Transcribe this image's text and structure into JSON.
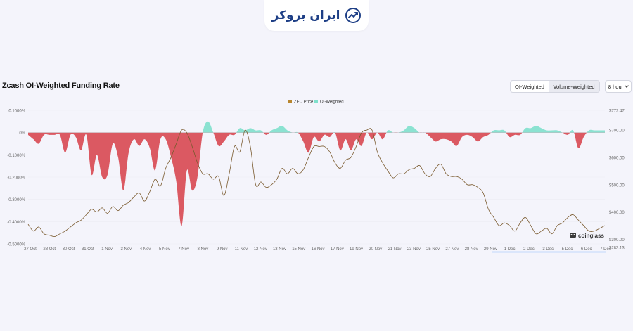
{
  "brand": {
    "name": "ایران بروکر",
    "mark_icon": "trend-up-chart-icon"
  },
  "header": {
    "title": "Zcash OI-Weighted Funding Rate",
    "toggle": {
      "options": [
        "OI-Weighted",
        "Volume-Weighted"
      ],
      "selected": "Volume-Weighted"
    },
    "interval": "8 hour"
  },
  "watermark": "coinglass",
  "chart_data": {
    "type": "area",
    "legend": {
      "placement": "top-center",
      "entries": [
        {
          "name": "ZEC Price",
          "color": "#b8862f"
        },
        {
          "name": "OI-Weighted",
          "color": "#7fe0cc"
        }
      ]
    },
    "colors": {
      "positive": "#7fe0cc",
      "negative": "#d9505a",
      "price": "#7a5a2e"
    },
    "x_tick_labels": [
      "27 Oct",
      "28 Oct",
      "30 Oct",
      "31 Oct",
      "1 Nov",
      "3 Nov",
      "4 Nov",
      "5 Nov",
      "7 Nov",
      "8 Nov",
      "9 Nov",
      "11 Nov",
      "12 Nov",
      "13 Nov",
      "15 Nov",
      "16 Nov",
      "17 Nov",
      "19 Nov",
      "20 Nov",
      "21 Nov",
      "23 Nov",
      "25 Nov",
      "27 Nov",
      "28 Nov",
      "29 Nov",
      "1 Dec",
      "2 Dec",
      "3 Dec",
      "5 Dec",
      "6 Dec",
      "7 Dec"
    ],
    "left_axis": {
      "ylabel": "",
      "ticks": [
        "0.1000%",
        "0%",
        "-0.1000%",
        "-0.2000%",
        "-0.3000%",
        "-0.4000%",
        "-0.5000%"
      ],
      "range": [
        -0.5,
        0.1
      ]
    },
    "right_axis": {
      "ylabel": "",
      "ticks": [
        "$772.47",
        "$700.00",
        "$600.00",
        "$500.00",
        "$400.00",
        "$300.00",
        "$283.13"
      ],
      "range": [
        283.13,
        772.47
      ]
    },
    "series": [
      {
        "name": "OI-Weighted",
        "unit": "%",
        "values": [
          -0.01,
          -0.03,
          -0.05,
          -0.01,
          -0.01,
          -0.01,
          -0.01,
          -0.09,
          -0.01,
          -0.02,
          -0.08,
          -0.01,
          -0.19,
          -0.1,
          -0.2,
          -0.19,
          -0.05,
          -0.11,
          -0.26,
          -0.09,
          -0.03,
          -0.06,
          -0.03,
          -0.07,
          -0.17,
          -0.03,
          -0.03,
          -0.11,
          -0.22,
          -0.42,
          -0.17,
          -0.26,
          -0.2,
          0.0,
          0.05,
          0.0,
          -0.06,
          -0.04,
          -0.01,
          -0.01,
          0.02,
          0.01,
          0.02,
          0.01,
          0.01,
          -0.01,
          0.01,
          0.02,
          0.03,
          0.01,
          0.0,
          0.0,
          -0.04,
          -0.09,
          -0.02,
          -0.04,
          -0.01,
          -0.02,
          0.0,
          -0.08,
          -0.03,
          -0.08,
          -0.03,
          -0.06,
          0.0,
          -0.03,
          0.0,
          -0.03,
          0.01,
          0.0,
          0.0,
          0.01,
          0.03,
          0.02,
          0.0,
          0.0,
          -0.02,
          -0.04,
          -0.03,
          -0.03,
          -0.04,
          -0.06,
          -0.02,
          -0.01,
          -0.02,
          -0.04,
          -0.02,
          -0.01,
          0.01,
          0.01,
          0.01,
          -0.02,
          -0.01,
          -0.01,
          0.02,
          0.02,
          0.03,
          0.02,
          0.01,
          0.01,
          0.01,
          0.0,
          -0.01,
          0.01,
          -0.07,
          -0.02,
          0.01,
          0.01,
          0.01,
          0.01
        ]
      },
      {
        "name": "ZEC Price",
        "unit": "$",
        "values": [
          355,
          330,
          345,
          320,
          315,
          310,
          320,
          330,
          345,
          360,
          370,
          390,
          410,
          400,
          415,
          395,
          420,
          405,
          425,
          435,
          455,
          470,
          440,
          475,
          520,
          495,
          560,
          600,
          650,
          700,
          690,
          640,
          580,
          540,
          540,
          520,
          530,
          460,
          540,
          640,
          620,
          700,
          640,
          500,
          510,
          490,
          500,
          520,
          560,
          540,
          560,
          540,
          555,
          600,
          640,
          640,
          640,
          620,
          580,
          560,
          590,
          600,
          640,
          690,
          700,
          700,
          620,
          580,
          550,
          525,
          540,
          540,
          555,
          560,
          570,
          540,
          530,
          560,
          575,
          540,
          530,
          530,
          520,
          500,
          500,
          490,
          470,
          410,
          380,
          350,
          360,
          350,
          330,
          360,
          380,
          350,
          320,
          330,
          340,
          320,
          350,
          360,
          380,
          390,
          370,
          350,
          330,
          330,
          340,
          350
        ]
      }
    ]
  }
}
